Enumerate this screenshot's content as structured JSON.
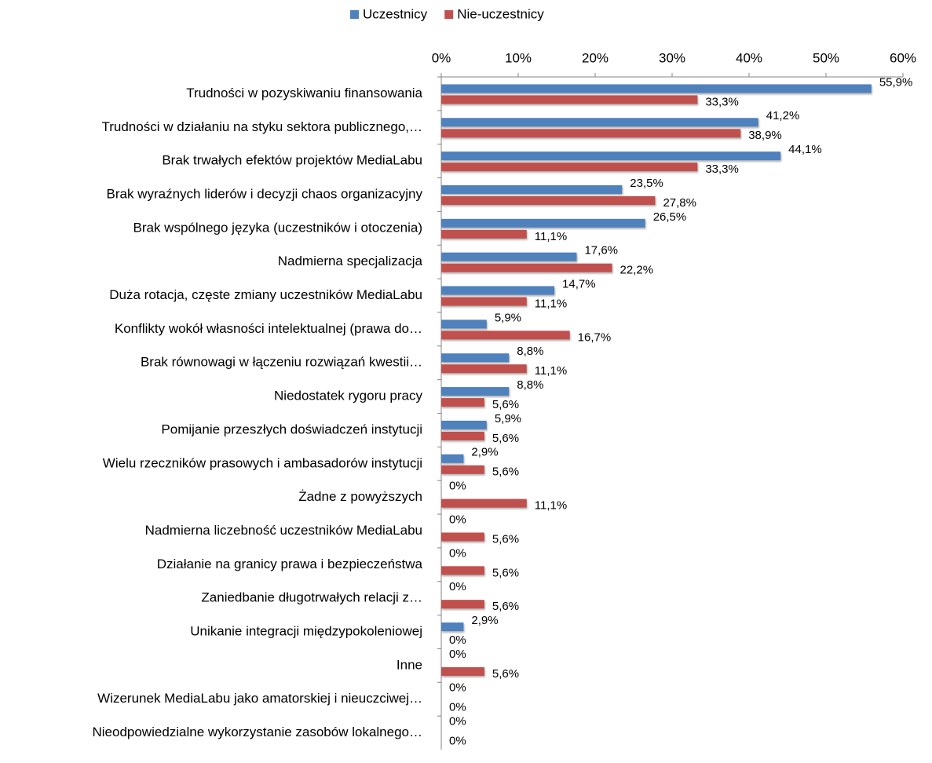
{
  "chart_data": {
    "type": "bar",
    "orientation": "horizontal",
    "categories": [
      "Trudności w pozyskiwaniu finansowania",
      "Trudności w działaniu na styku sektora publicznego,…",
      "Brak trwałych efektów projektów MediaLabu",
      "Brak wyraźnych liderów i decyzji chaos organizacyjny",
      "Brak wspólnego języka (uczestników i otoczenia)",
      "Nadmierna specjalizacja",
      "Duża rotacja, częste zmiany uczestników MediaLabu",
      "Konflikty wokół własności intelektualnej (prawa do…",
      "Brak równowagi w łączeniu rozwiązań kwestii…",
      "Niedostatek rygoru pracy",
      "Pomijanie przeszłych doświadczeń instytucji",
      "Wielu rzeczników prasowych i ambasadorów instytucji",
      "Żadne z powyższych",
      "Nadmierna liczebność uczestników MediaLabu",
      "Działanie na granicy prawa i bezpieczeństwa",
      "Zaniedbanie długotrwałych relacji z…",
      "Unikanie integracji międzypokoleniowej",
      "Inne",
      "Wizerunek MediaLabu jako amatorskiej i nieuczciwej…",
      "Nieodpowiedzialne wykorzystanie zasobów lokalnego…"
    ],
    "series": [
      {
        "name": "Uczestnicy",
        "color": "#4f81bd",
        "values": [
          55.9,
          41.2,
          44.1,
          23.5,
          26.5,
          17.6,
          14.7,
          5.9,
          8.8,
          8.8,
          5.9,
          2.9,
          0,
          0,
          0,
          0,
          2.9,
          0,
          0,
          0
        ],
        "value_labels": [
          "55,9%",
          "41,2%",
          "44,1%",
          "23,5%",
          "26,5%",
          "17,6%",
          "14,7%",
          "5,9%",
          "8,8%",
          "8,8%",
          "5,9%",
          "2,9%",
          "0%",
          "0%",
          "0%",
          "0%",
          "2,9%",
          "0%",
          "0%",
          "0%"
        ]
      },
      {
        "name": "Nie-uczestnicy",
        "color": "#c0504d",
        "values": [
          33.3,
          38.9,
          33.3,
          27.8,
          11.1,
          22.2,
          11.1,
          16.7,
          11.1,
          5.6,
          5.6,
          5.6,
          11.1,
          5.6,
          5.6,
          5.6,
          0,
          5.6,
          0,
          0
        ],
        "value_labels": [
          "33,3%",
          "38,9%",
          "33,3%",
          "27,8%",
          "11,1%",
          "22,2%",
          "11,1%",
          "16,7%",
          "11,1%",
          "5,6%",
          "5,6%",
          "5,6%",
          "11,1%",
          "5,6%",
          "5,6%",
          "5,6%",
          "0%",
          "5,6%",
          "0%",
          "0%"
        ]
      }
    ],
    "xlim": [
      0,
      60
    ],
    "xticks": [
      {
        "value": 0,
        "label": "0%"
      },
      {
        "value": 10,
        "label": "10%"
      },
      {
        "value": 20,
        "label": "20%"
      },
      {
        "value": 30,
        "label": "30%"
      },
      {
        "value": 40,
        "label": "40%"
      },
      {
        "value": 50,
        "label": "50%"
      },
      {
        "value": 60,
        "label": "60%"
      }
    ],
    "legend": "top"
  }
}
